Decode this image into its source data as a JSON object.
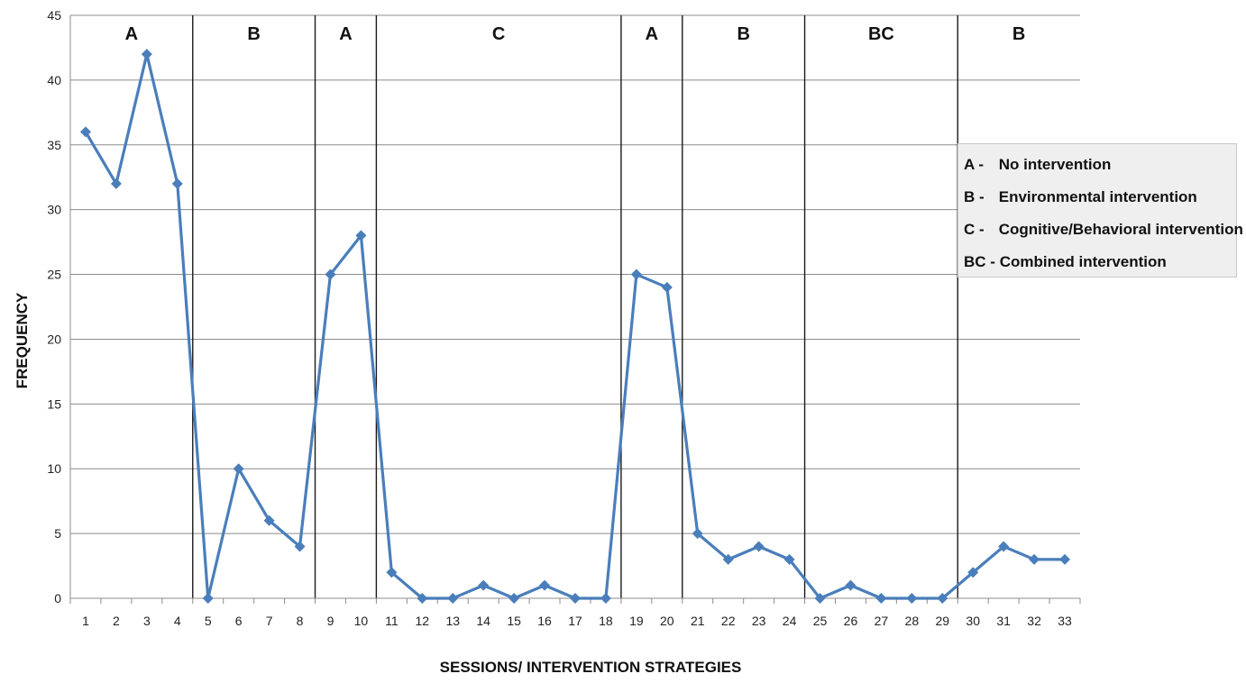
{
  "chart_data": {
    "type": "line",
    "xlabel": "SESSIONS/ INTERVENTION STRATEGIES",
    "ylabel": "FREQUENCY",
    "ylim": [
      0,
      45
    ],
    "yticks": [
      0,
      5,
      10,
      15,
      20,
      25,
      30,
      35,
      40,
      45
    ],
    "x": [
      1,
      2,
      3,
      4,
      5,
      6,
      7,
      8,
      9,
      10,
      11,
      12,
      13,
      14,
      15,
      16,
      17,
      18,
      19,
      20,
      21,
      22,
      23,
      24,
      25,
      26,
      27,
      28,
      29,
      30,
      31,
      32,
      33
    ],
    "series": [
      {
        "values": [
          36,
          32,
          42,
          32,
          0,
          10,
          6,
          4,
          25,
          28,
          2,
          0,
          0,
          1,
          0,
          1,
          0,
          0,
          25,
          24,
          5,
          3,
          4,
          3,
          0,
          1,
          0,
          0,
          0,
          2,
          4,
          3,
          3
        ],
        "color": "#4a7ebb"
      }
    ],
    "grid": true,
    "phases": [
      {
        "label": "A",
        "start": 1,
        "end": 4
      },
      {
        "label": "B",
        "start": 5,
        "end": 8
      },
      {
        "label": "A",
        "start": 9,
        "end": 10
      },
      {
        "label": "C",
        "start": 11,
        "end": 18
      },
      {
        "label": "A",
        "start": 19,
        "end": 20
      },
      {
        "label": "B",
        "start": 21,
        "end": 24
      },
      {
        "label": "BC",
        "start": 25,
        "end": 29
      },
      {
        "label": "B",
        "start": 30,
        "end": 33
      }
    ],
    "legend_position": "right",
    "legend": [
      {
        "key": "A -",
        "text": "No intervention"
      },
      {
        "key": "B -",
        "text": "Environmental intervention"
      },
      {
        "key": "C -",
        "text": "Cognitive/Behavioral intervention"
      },
      {
        "key": "BC -",
        "text": "Combined intervention"
      }
    ]
  }
}
